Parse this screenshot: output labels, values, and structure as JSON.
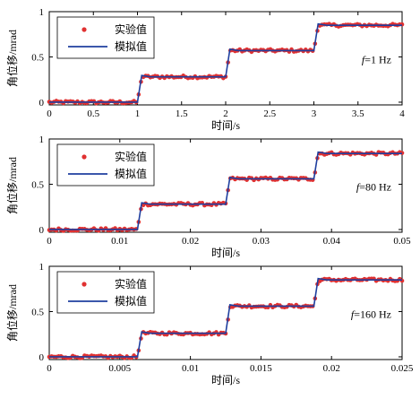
{
  "colors": {
    "experiment": "#e03131",
    "simulation": "#1f3f9f",
    "axis": "#000000"
  },
  "chart_data": [
    {
      "type": "scatter",
      "panel": "top",
      "title": "",
      "xlabel": "时间/s",
      "ylabel": "角位移/mrad",
      "xlim": [
        0,
        4
      ],
      "ylim": [
        0,
        1
      ],
      "xticks": [
        "0",
        "0.5",
        "1",
        "1.5",
        "2",
        "2.5",
        "3",
        "3.5",
        "4"
      ],
      "xtick_values": [
        0,
        0.5,
        1,
        1.5,
        2,
        2.5,
        3,
        3.5,
        4
      ],
      "yticks": [
        "0",
        "0.5",
        "1"
      ],
      "ytick_values": [
        0,
        0.5,
        1
      ],
      "annotation": {
        "italic": "f",
        "text": "=1 Hz"
      },
      "legend": {
        "placement": "top-left",
        "entries": [
          "实验值",
          "模拟值"
        ]
      },
      "steps": {
        "x": [
          0,
          1,
          2,
          3,
          4
        ],
        "levels": [
          0,
          0.28,
          0.57,
          0.85
        ]
      },
      "series": [
        {
          "name": "实验值",
          "style": "markers",
          "step_times": [
            1,
            2,
            3
          ],
          "levels": [
            0,
            0.28,
            0.57,
            0.85
          ]
        },
        {
          "name": "模拟值",
          "style": "line",
          "step_times": [
            1,
            2,
            3
          ],
          "levels": [
            0,
            0.28,
            0.57,
            0.85
          ]
        }
      ]
    },
    {
      "type": "scatter",
      "panel": "middle",
      "title": "",
      "xlabel": "时间/s",
      "ylabel": "角位移/mrad",
      "xlim": [
        0,
        0.05
      ],
      "ylim": [
        0,
        1
      ],
      "xticks": [
        "0",
        "0.01",
        "0.02",
        "0.03",
        "0.04",
        "0.05"
      ],
      "xtick_values": [
        0,
        0.01,
        0.02,
        0.03,
        0.04,
        0.05
      ],
      "yticks": [
        "0",
        "0.5",
        "1"
      ],
      "ytick_values": [
        0,
        0.5,
        1
      ],
      "annotation": {
        "italic": "f",
        "text": "=80 Hz"
      },
      "legend": {
        "placement": "top-left",
        "entries": [
          "实验值",
          "模拟值"
        ]
      },
      "series": [
        {
          "name": "实验值",
          "style": "markers",
          "step_times": [
            0.0125,
            0.025,
            0.0375
          ],
          "levels": [
            0,
            0.28,
            0.56,
            0.84
          ]
        },
        {
          "name": "模拟值",
          "style": "line",
          "step_times": [
            0.0125,
            0.025,
            0.0375
          ],
          "levels": [
            0,
            0.28,
            0.56,
            0.84
          ]
        }
      ]
    },
    {
      "type": "scatter",
      "panel": "bottom",
      "title": "",
      "xlabel": "时间/s",
      "ylabel": "角位移/mrad",
      "xlim": [
        0,
        0.025
      ],
      "ylim": [
        0,
        1
      ],
      "xticks": [
        "0",
        "0.005",
        "0.01",
        "0.015",
        "0.02",
        "0.025"
      ],
      "xtick_values": [
        0,
        0.005,
        0.01,
        0.015,
        0.02,
        0.025
      ],
      "yticks": [
        "0",
        "0.5",
        "1"
      ],
      "ytick_values": [
        0,
        0.5,
        1
      ],
      "annotation": {
        "italic": "f",
        "text": "=160 Hz"
      },
      "legend": {
        "placement": "top-left",
        "entries": [
          "实验值",
          "模拟值"
        ]
      },
      "series": [
        {
          "name": "实验值",
          "style": "markers",
          "step_times": [
            0.00625,
            0.0125,
            0.01875
          ],
          "levels": [
            0,
            0.26,
            0.56,
            0.85
          ]
        },
        {
          "name": "模拟值",
          "style": "line",
          "step_times": [
            0.00625,
            0.0125,
            0.01875
          ],
          "levels": [
            0,
            0.26,
            0.56,
            0.85
          ]
        }
      ]
    }
  ]
}
